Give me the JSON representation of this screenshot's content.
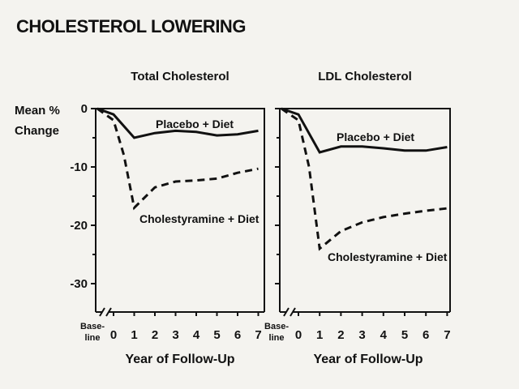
{
  "title": "CHOLESTEROL LOWERING",
  "y_axis_label_line1": "Mean %",
  "y_axis_label_line2": "Change",
  "x_axis_label": "Year of Follow-Up",
  "baseline_label_line1": "Base-",
  "baseline_label_line2": "line",
  "chart_data": [
    {
      "type": "line",
      "title": "Total Cholesterol",
      "xlabel": "Year of Follow-Up",
      "ylabel": "Mean % Change",
      "x_ticks": [
        "0",
        "1",
        "2",
        "3",
        "4",
        "5",
        "6",
        "7"
      ],
      "y_ticks": [
        "0",
        "-10",
        "-20",
        "-30"
      ],
      "ylim": [
        -34,
        0
      ],
      "xlim": [
        -0.8,
        7
      ],
      "series": [
        {
          "name": "Placebo + Diet",
          "style": "solid",
          "x": [
            -0.8,
            0,
            1,
            2,
            3,
            4,
            5,
            6,
            7
          ],
          "y": [
            0,
            -1,
            -5,
            -4.2,
            -3.8,
            -4,
            -4.6,
            -4.4,
            -3.8
          ]
        },
        {
          "name": "Cholestyramine + Diet",
          "style": "dashed",
          "x": [
            -0.8,
            0,
            0.5,
            1,
            2,
            3,
            4,
            5,
            6,
            7
          ],
          "y": [
            0,
            -2,
            -8,
            -17,
            -13.5,
            -12.5,
            -12.3,
            -12,
            -11,
            -10.3
          ]
        }
      ]
    },
    {
      "type": "line",
      "title": "LDL Cholesterol",
      "xlabel": "Year of Follow-Up",
      "ylabel": "",
      "x_ticks": [
        "0",
        "1",
        "2",
        "3",
        "4",
        "5",
        "6",
        "7"
      ],
      "y_ticks": [
        "0",
        "-10",
        "-20",
        "-30"
      ],
      "ylim": [
        -34,
        0
      ],
      "xlim": [
        -0.8,
        7
      ],
      "series": [
        {
          "name": "Placebo + Diet",
          "style": "solid",
          "x": [
            -0.8,
            0,
            1,
            2,
            3,
            4,
            5,
            6,
            7
          ],
          "y": [
            0,
            -1,
            -7.5,
            -6.5,
            -6.5,
            -6.8,
            -7.2,
            -7.2,
            -6.6
          ]
        },
        {
          "name": "Cholestyramine + Diet",
          "style": "dashed",
          "x": [
            -0.8,
            0,
            0.5,
            1,
            2,
            3,
            4,
            5,
            6,
            7
          ],
          "y": [
            0,
            -2,
            -10,
            -24,
            -21,
            -19.5,
            -18.6,
            -18,
            -17.5,
            -17.1
          ]
        }
      ]
    }
  ]
}
